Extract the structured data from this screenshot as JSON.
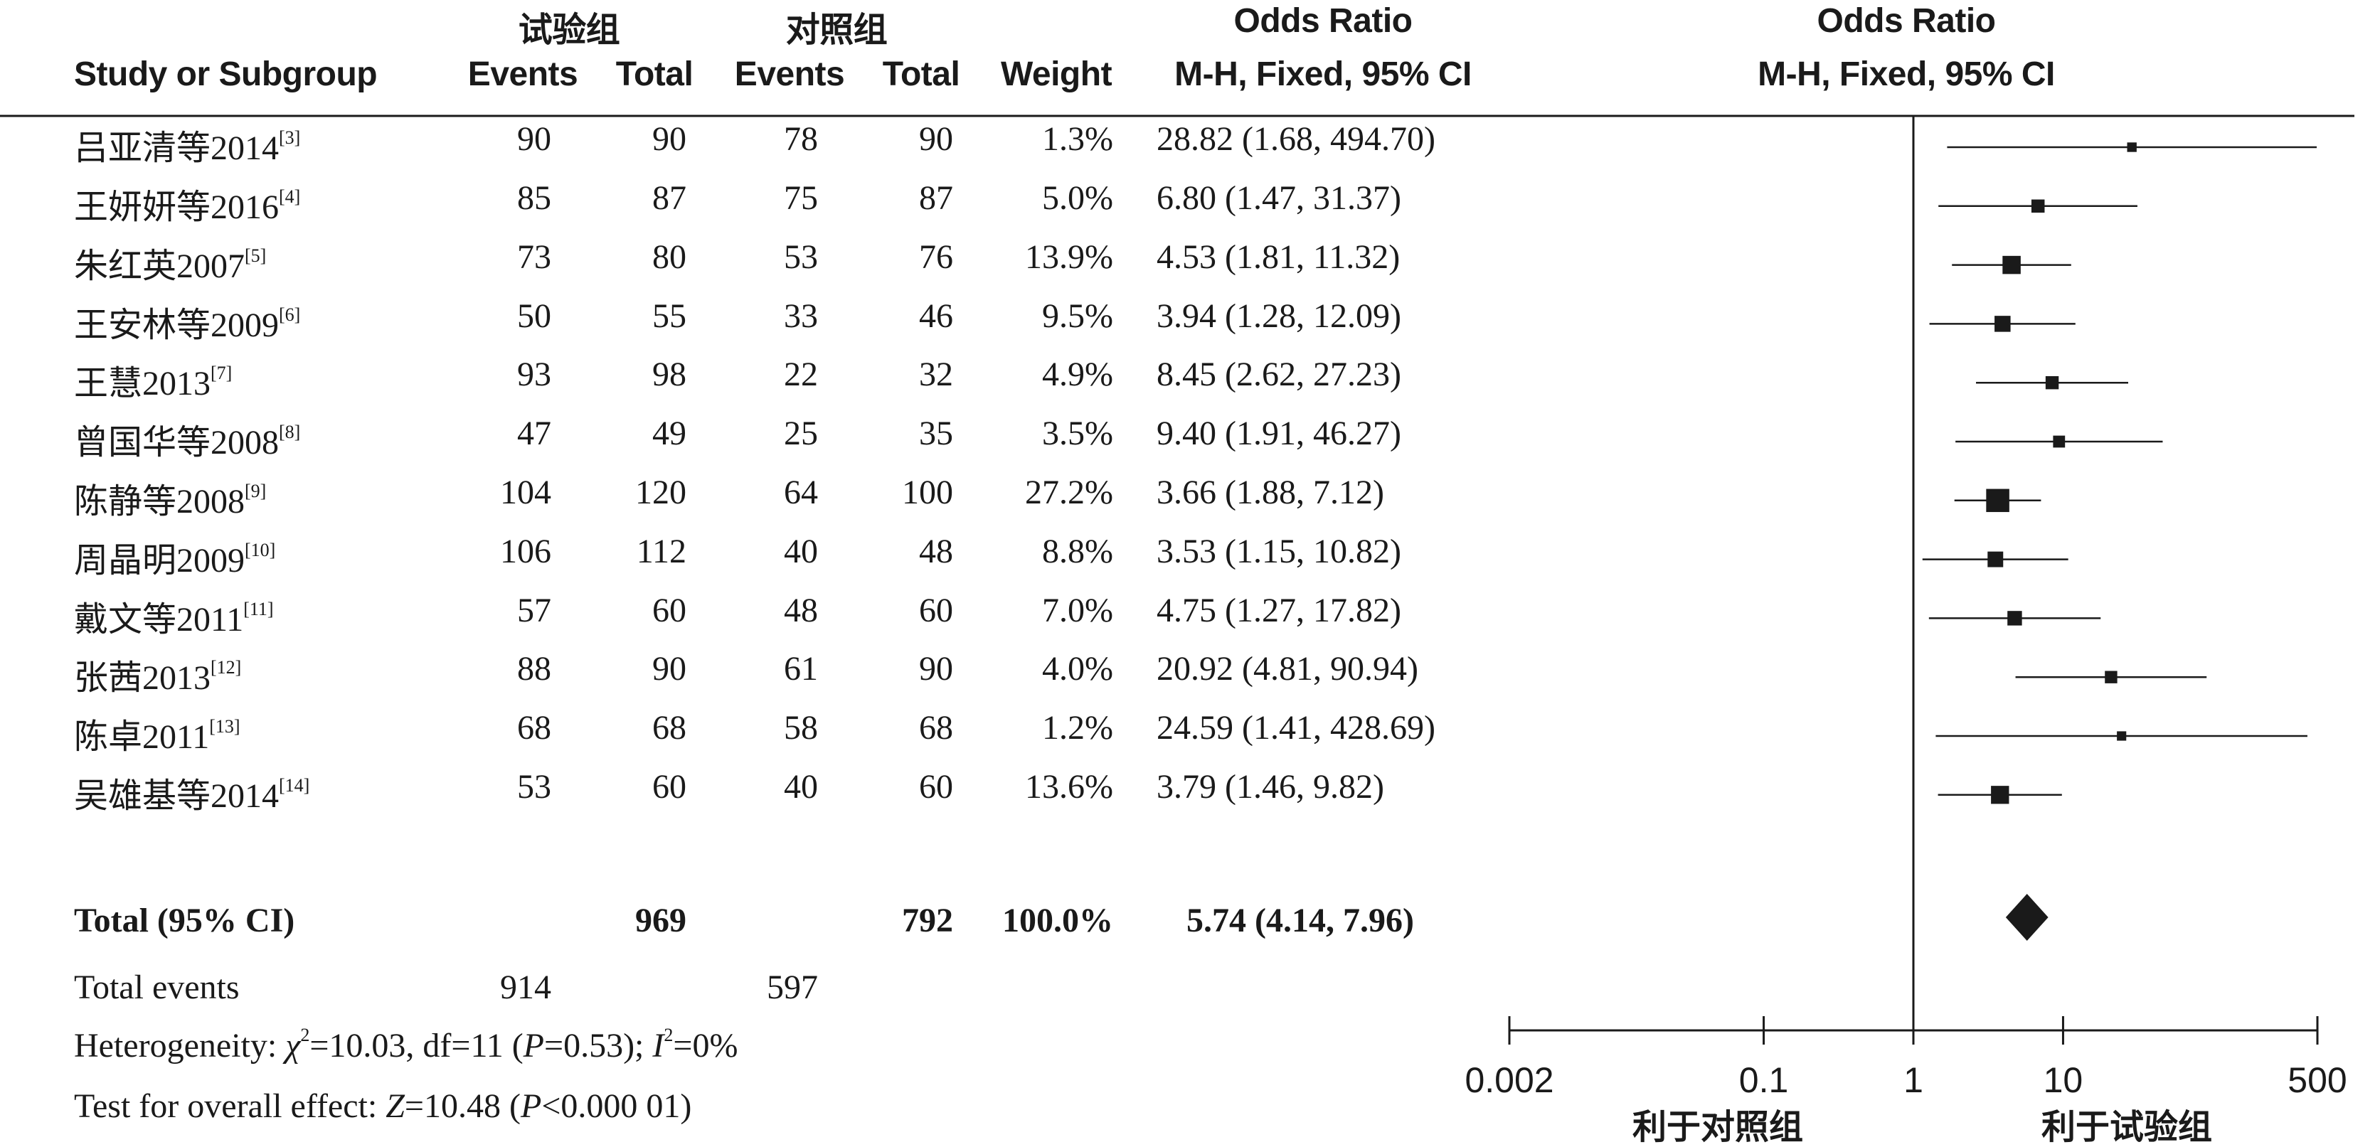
{
  "header": {
    "group_exp": "试验组",
    "group_ctrl": "对照组",
    "or_title": "Odds Ratio",
    "or_method": "M-H, Fixed, 95% CI",
    "plot_title": "Odds Ratio",
    "plot_method": "M-H, Fixed, 95% CI",
    "col_study": "Study or Subgroup",
    "col_exp_events": "Events",
    "col_exp_total": "Total",
    "col_ctrl_events": "Events",
    "col_ctrl_total": "Total",
    "col_weight": "Weight"
  },
  "studies": [
    {
      "name": "吕亚清等2014",
      "ref": "[3]",
      "exp_events": "90",
      "exp_total": "90",
      "ctrl_events": "78",
      "ctrl_total": "90",
      "weight": "1.3%",
      "ci_text": "28.82 (1.68, 494.70)"
    },
    {
      "name": "王妍妍等2016",
      "ref": "[4]",
      "exp_events": "85",
      "exp_total": "87",
      "ctrl_events": "75",
      "ctrl_total": "87",
      "weight": "5.0%",
      "ci_text": "6.80 (1.47, 31.37)"
    },
    {
      "name": "朱红英2007",
      "ref": "[5]",
      "exp_events": "73",
      "exp_total": "80",
      "ctrl_events": "53",
      "ctrl_total": "76",
      "weight": "13.9%",
      "ci_text": "4.53 (1.81, 11.32)"
    },
    {
      "name": "王安林等2009",
      "ref": "[6]",
      "exp_events": "50",
      "exp_total": "55",
      "ctrl_events": "33",
      "ctrl_total": "46",
      "weight": "9.5%",
      "ci_text": "3.94 (1.28, 12.09)"
    },
    {
      "name": "王慧2013",
      "ref": "[7]",
      "exp_events": "93",
      "exp_total": "98",
      "ctrl_events": "22",
      "ctrl_total": "32",
      "weight": "4.9%",
      "ci_text": "8.45 (2.62, 27.23)"
    },
    {
      "name": "曾国华等2008",
      "ref": "[8]",
      "exp_events": "47",
      "exp_total": "49",
      "ctrl_events": "25",
      "ctrl_total": "35",
      "weight": "3.5%",
      "ci_text": "9.40 (1.91, 46.27)"
    },
    {
      "name": "陈静等2008",
      "ref": "[9]",
      "exp_events": "104",
      "exp_total": "120",
      "ctrl_events": "64",
      "ctrl_total": "100",
      "weight": "27.2%",
      "ci_text": "3.66 (1.88, 7.12)"
    },
    {
      "name": "周晶明2009",
      "ref": "[10]",
      "exp_events": "106",
      "exp_total": "112",
      "ctrl_events": "40",
      "ctrl_total": "48",
      "weight": "8.8%",
      "ci_text": "3.53 (1.15, 10.82)"
    },
    {
      "name": "戴文等2011",
      "ref": "[11]",
      "exp_events": "57",
      "exp_total": "60",
      "ctrl_events": "48",
      "ctrl_total": "60",
      "weight": "7.0%",
      "ci_text": "4.75 (1.27, 17.82)"
    },
    {
      "name": "张茜2013",
      "ref": "[12]",
      "exp_events": "88",
      "exp_total": "90",
      "ctrl_events": "61",
      "ctrl_total": "90",
      "weight": "4.0%",
      "ci_text": "20.92 (4.81, 90.94)"
    },
    {
      "name": "陈卓2011",
      "ref": "[13]",
      "exp_events": "68",
      "exp_total": "68",
      "ctrl_events": "58",
      "ctrl_total": "68",
      "weight": "1.2%",
      "ci_text": "24.59 (1.41, 428.69)"
    },
    {
      "name": "吴雄基等2014",
      "ref": "[14]",
      "exp_events": "53",
      "exp_total": "60",
      "ctrl_events": "40",
      "ctrl_total": "60",
      "weight": "13.6%",
      "ci_text": "3.79 (1.46, 9.82)"
    }
  ],
  "total_row": {
    "label": "Total (95% CI)",
    "exp_total": "969",
    "ctrl_total": "792",
    "weight": "100.0%",
    "ci_text": "5.74 (4.14, 7.96)"
  },
  "total_events": {
    "label": "Total events",
    "exp": "914",
    "ctrl": "597"
  },
  "heterogeneity": {
    "prefix": "Heterogeneity: ",
    "chi_sym": "χ",
    "chi_sup": "2",
    "chi_rest": "=10.03, df=11 (",
    "p_sym": "P",
    "p_rest": "=0.53); ",
    "i_sym": "I",
    "i_sup": "2",
    "i_rest": "=0%"
  },
  "overall_effect": {
    "prefix": "Test for overall effect: ",
    "z_sym": "Z",
    "z_rest": "=10.48 (",
    "p_sym": "P",
    "p_rest": "<0.000 01)"
  },
  "chart_data": {
    "type": "forest",
    "scale": "log",
    "xlim": [
      0.002,
      500
    ],
    "reference_line": 1,
    "ticks": [
      {
        "value": 0.002,
        "label": "0.002"
      },
      {
        "value": 0.1,
        "label": "0.1"
      },
      {
        "value": 1,
        "label": "1"
      },
      {
        "value": 10,
        "label": "10"
      },
      {
        "value": 500,
        "label": "500"
      }
    ],
    "favours_left": "利于对照组",
    "favours_right": "利于试验组",
    "points": [
      {
        "or": 28.82,
        "lower": 1.68,
        "upper": 494.7,
        "weight": 1.3
      },
      {
        "or": 6.8,
        "lower": 1.47,
        "upper": 31.37,
        "weight": 5.0
      },
      {
        "or": 4.53,
        "lower": 1.81,
        "upper": 11.32,
        "weight": 13.9
      },
      {
        "or": 3.94,
        "lower": 1.28,
        "upper": 12.09,
        "weight": 9.5
      },
      {
        "or": 8.45,
        "lower": 2.62,
        "upper": 27.23,
        "weight": 4.9
      },
      {
        "or": 9.4,
        "lower": 1.91,
        "upper": 46.27,
        "weight": 3.5
      },
      {
        "or": 3.66,
        "lower": 1.88,
        "upper": 7.12,
        "weight": 27.2
      },
      {
        "or": 3.53,
        "lower": 1.15,
        "upper": 10.82,
        "weight": 8.8
      },
      {
        "or": 4.75,
        "lower": 1.27,
        "upper": 17.82,
        "weight": 7.0
      },
      {
        "or": 20.92,
        "lower": 4.81,
        "upper": 90.94,
        "weight": 4.0
      },
      {
        "or": 24.59,
        "lower": 1.41,
        "upper": 428.69,
        "weight": 1.2
      },
      {
        "or": 3.79,
        "lower": 1.46,
        "upper": 9.82,
        "weight": 13.6
      }
    ],
    "pooled": {
      "or": 5.74,
      "lower": 4.14,
      "upper": 7.96
    }
  }
}
